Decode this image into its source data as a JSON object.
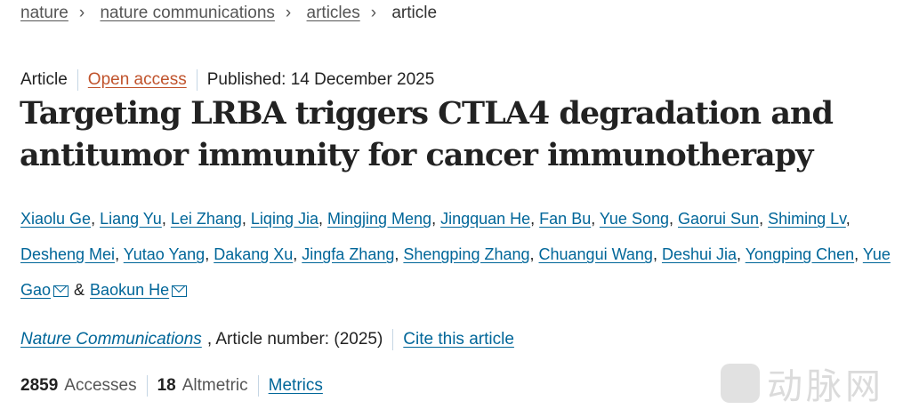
{
  "breadcrumb": [
    "nature",
    "nature communications",
    "articles",
    "article"
  ],
  "meta": {
    "type": "Article",
    "access": "Open access",
    "published": "Published: 14 December 2025"
  },
  "title": "Targeting LRBA triggers CTLA4 degradation and antitumor immunity for cancer immunotherapy",
  "authors": [
    "Xiaolu Ge",
    "Liang Yu",
    "Lei Zhang",
    "Liqing Jia",
    "Mingjing Meng",
    "Jingquan He",
    "Fan Bu",
    "Yue Song",
    "Gaorui Sun",
    "Shiming Lv",
    "Desheng Mei",
    "Yutao Yang",
    "Dakang Xu",
    "Jingfa Zhang",
    "Shengping Zhang",
    "Chuangui Wang",
    "Deshui Jia",
    "Yongping Chen",
    "Yue Gao",
    "Baokun He"
  ],
  "authors_and": "&",
  "journal": {
    "name": "Nature Communications",
    "article_number": ", Article number:  (2025)",
    "cite": "Cite this article"
  },
  "metrics": {
    "accesses": "2859",
    "accesses_label": "Accesses",
    "altmetric": "18",
    "altmetric_label": "Altmetric",
    "link": "Metrics"
  },
  "watermark": {
    "logo": "VB",
    "text": "动脉网"
  },
  "colors": {
    "link": "#006699",
    "open_access": "#c0532c"
  }
}
